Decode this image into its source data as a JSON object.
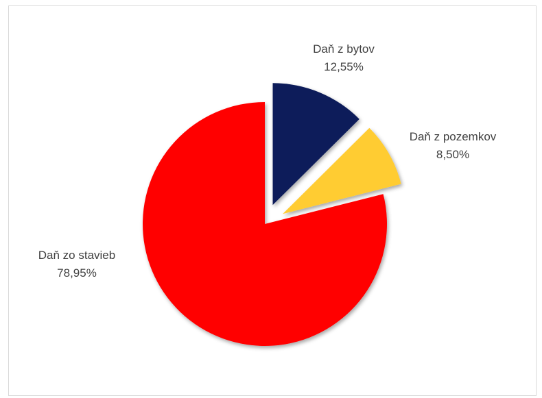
{
  "chart_data": {
    "type": "pie",
    "title": "",
    "legend": "none",
    "slices": [
      {
        "name": "Daň z bytov",
        "label": "12,55%",
        "value": 12.55,
        "color": "#0b1d5a"
      },
      {
        "name": "Daň z pozemkov",
        "label": "8,50%",
        "value": 8.5,
        "color": "#ffcc33"
      },
      {
        "name": "Daň zo stavieb",
        "label": "78,95%",
        "value": 78.95,
        "color": "#ff0000"
      }
    ]
  }
}
